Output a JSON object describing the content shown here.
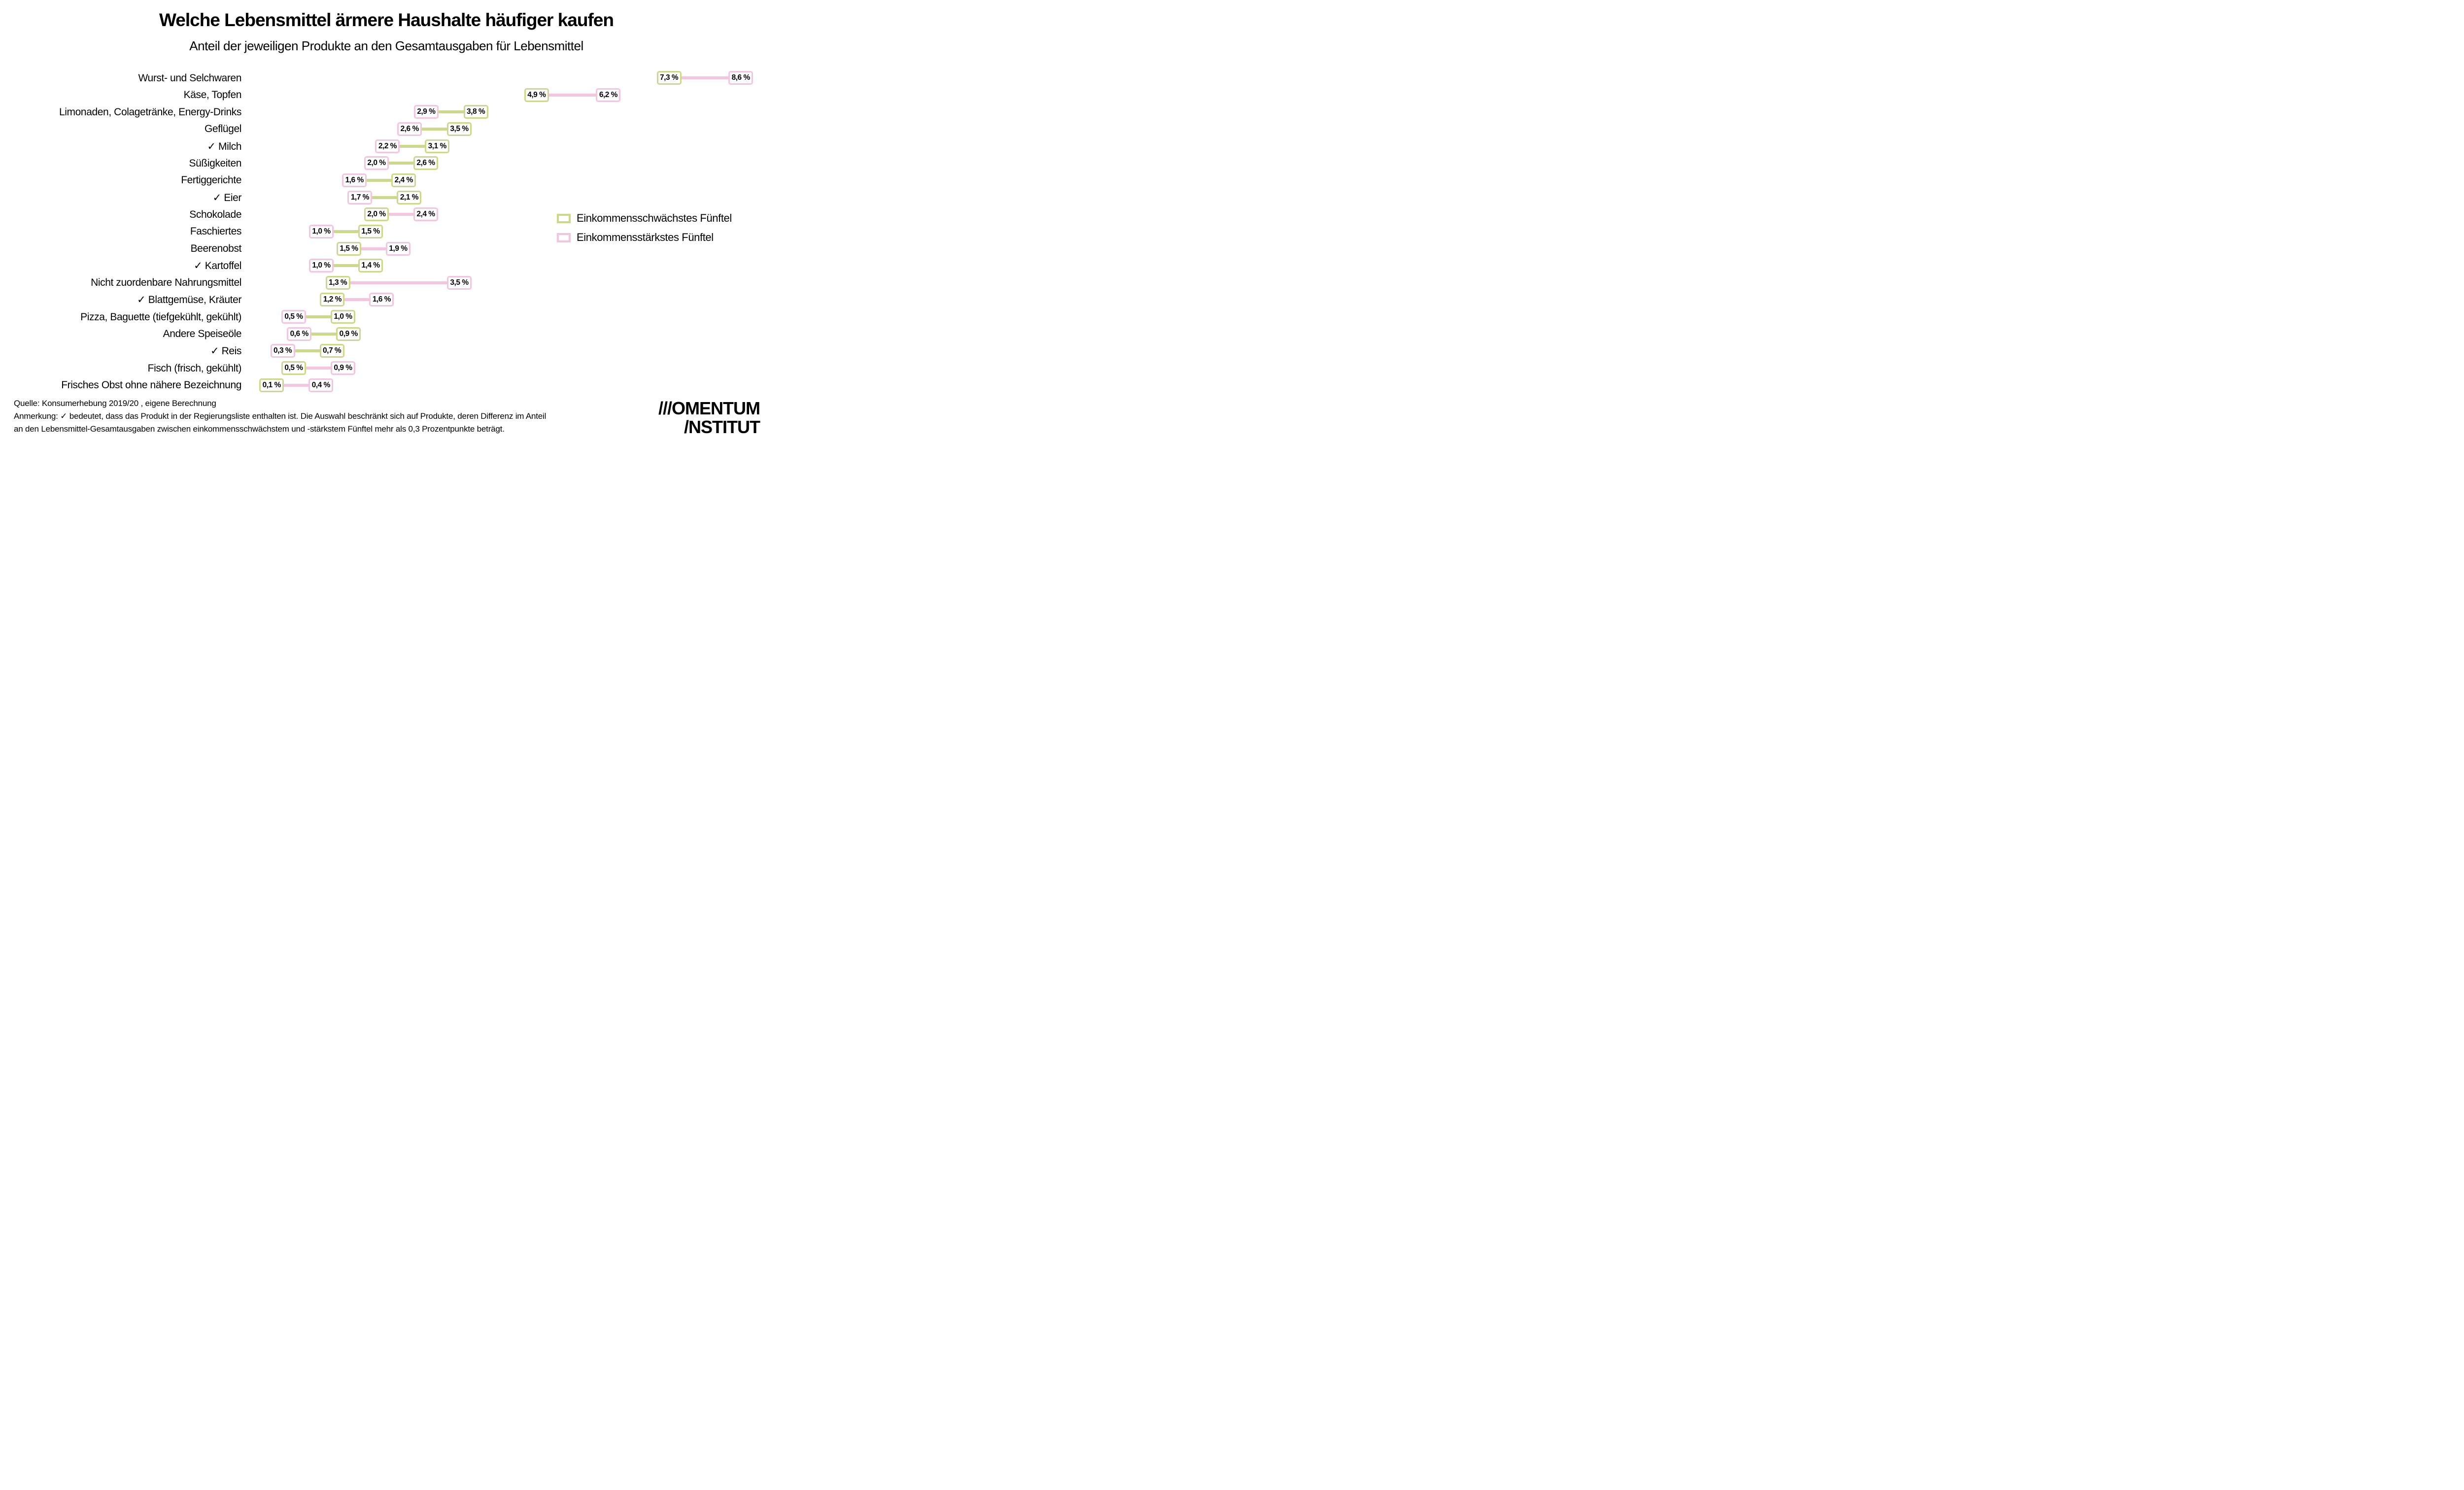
{
  "title": "Welche Lebensmittel ärmere Haushalte häufiger kaufen",
  "subtitle": "Anteil der jeweiligen Produkte an den Gesamtausgaben für Lebensmittel",
  "colors": {
    "poor_green": "#ccd98a",
    "rich_pink": "#f3c5e1",
    "text": "#000000",
    "background": "#ffffff"
  },
  "legend": {
    "items": [
      {
        "label": "Einkommensschwächstes Fünftel",
        "color": "#ccd98a"
      },
      {
        "label": "Einkommensstärkstes Fünftel",
        "color": "#f3c5e1"
      }
    ]
  },
  "chart_data": {
    "type": "scatter",
    "variant": "dumbbell",
    "title": "Welche Lebensmittel ärmere Haushalte häufiger kaufen",
    "subtitle": "Anteil der jeweiligen Produkte an den Gesamtausgaben für Lebensmittel",
    "unit": "% der Lebensmittel-Gesamtausgaben",
    "xlim": [
      0,
      9
    ],
    "grid": false,
    "legend_position": "right-middle",
    "series": [
      {
        "name": "Einkommensschwächstes Fünftel",
        "color": "#ccd98a"
      },
      {
        "name": "Einkommensstärkstes Fünftel",
        "color": "#f3c5e1"
      }
    ],
    "government_list_marker": "✓",
    "rows": [
      {
        "label": "Wurst- und Selchwaren",
        "in_gov_list": false,
        "poor": 7.3,
        "rich": 8.6,
        "poor_label": "7,3 %",
        "rich_label": "8,6 %"
      },
      {
        "label": "Käse, Topfen",
        "in_gov_list": false,
        "poor": 4.9,
        "rich": 6.2,
        "poor_label": "4,9 %",
        "rich_label": "6,2 %"
      },
      {
        "label": "Limonaden, Colagetränke, Energy-Drinks",
        "in_gov_list": false,
        "poor": 3.8,
        "rich": 2.9,
        "poor_label": "3,8 %",
        "rich_label": "2,9 %"
      },
      {
        "label": "Geflügel",
        "in_gov_list": false,
        "poor": 3.5,
        "rich": 2.6,
        "poor_label": "3,5 %",
        "rich_label": "2,6 %"
      },
      {
        "label": "✓ Milch",
        "in_gov_list": true,
        "poor": 3.1,
        "rich": 2.2,
        "poor_label": "3,1 %",
        "rich_label": "2,2 %"
      },
      {
        "label": "Süßigkeiten",
        "in_gov_list": false,
        "poor": 2.6,
        "rich": 2.0,
        "poor_label": "2,6 %",
        "rich_label": "2,0 %"
      },
      {
        "label": "Fertiggerichte",
        "in_gov_list": false,
        "poor": 2.4,
        "rich": 1.6,
        "poor_label": "2,4 %",
        "rich_label": "1,6 %"
      },
      {
        "label": "✓ Eier",
        "in_gov_list": true,
        "poor": 2.1,
        "rich": 1.7,
        "poor_label": "2,1 %",
        "rich_label": "1,7 %"
      },
      {
        "label": "Schokolade",
        "in_gov_list": false,
        "poor": 2.0,
        "rich": 2.4,
        "poor_label": "2,0 %",
        "rich_label": "2,4 %"
      },
      {
        "label": "Faschiertes",
        "in_gov_list": false,
        "poor": 1.5,
        "rich": 1.0,
        "poor_label": "1,5 %",
        "rich_label": "1,0 %"
      },
      {
        "label": "Beerenobst",
        "in_gov_list": false,
        "poor": 1.5,
        "rich": 1.9,
        "poor_label": "1,5 %",
        "rich_label": "1,9 %"
      },
      {
        "label": "✓ Kartoffel",
        "in_gov_list": true,
        "poor": 1.4,
        "rich": 1.0,
        "poor_label": "1,4 %",
        "rich_label": "1,0 %"
      },
      {
        "label": "Nicht zuordenbare Nahrungsmittel",
        "in_gov_list": false,
        "poor": 1.3,
        "rich": 3.5,
        "poor_label": "1,3 %",
        "rich_label": "3,5 %"
      },
      {
        "label": "✓ Blattgemüse, Kräuter",
        "in_gov_list": true,
        "poor": 1.2,
        "rich": 1.6,
        "poor_label": "1,2 %",
        "rich_label": "1,6 %"
      },
      {
        "label": "Pizza, Baguette (tiefgekühlt, gekühlt)",
        "in_gov_list": false,
        "poor": 1.0,
        "rich": 0.5,
        "poor_label": "1,0 %",
        "rich_label": "0,5 %"
      },
      {
        "label": "Andere Speiseöle",
        "in_gov_list": false,
        "poor": 0.9,
        "rich": 0.6,
        "poor_label": "0,9 %",
        "rich_label": "0,6 %"
      },
      {
        "label": "✓ Reis",
        "in_gov_list": true,
        "poor": 0.7,
        "rich": 0.3,
        "poor_label": "0,7 %",
        "rich_label": "0,3 %"
      },
      {
        "label": "Fisch (frisch, gekühlt)",
        "in_gov_list": false,
        "poor": 0.5,
        "rich": 0.9,
        "poor_label": "0,5 %",
        "rich_label": "0,9 %"
      },
      {
        "label": "Frisches Obst ohne nähere Bezeichnung",
        "in_gov_list": false,
        "poor": 0.1,
        "rich": 0.4,
        "poor_label": "0,1 %",
        "rich_label": "0,4 %"
      }
    ]
  },
  "footer": {
    "source_line": "Quelle: Konsumerhebung 2019/20 , eigene Berechnung",
    "note_line1": "Anmerkung: ✓ bedeutet, dass das Produkt in der Regierungsliste enthalten ist. Die Auswahl beschränkt sich auf Produkte, deren Differenz im Anteil",
    "note_line2": "an den Lebensmittel-Gesamtausgaben zwischen einkommensschwächstem und -stärkstem Fünftel mehr als 0,3 Prozentpunkte beträgt."
  },
  "logo": {
    "line1": "///OMENTUM",
    "line2": "/NSTITUT"
  }
}
